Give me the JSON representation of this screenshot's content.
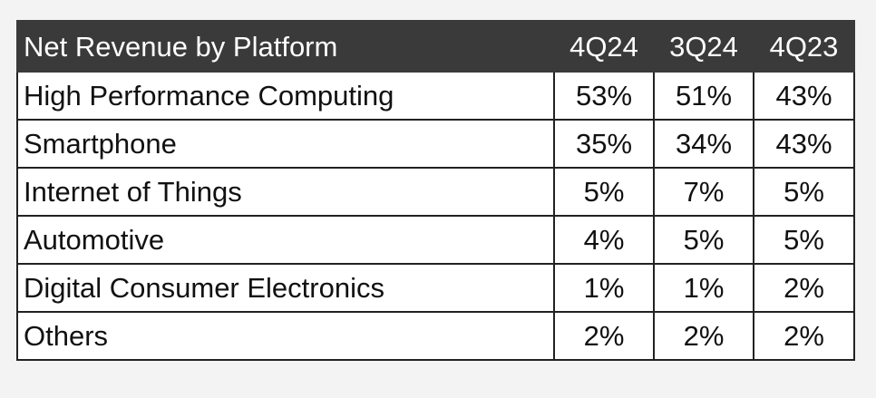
{
  "chart_data": {
    "type": "table",
    "title": "Net Revenue by Platform",
    "columns": [
      "4Q24",
      "3Q24",
      "4Q23"
    ],
    "rows": [
      {
        "label": "High Performance Computing",
        "values": [
          "53%",
          "51%",
          "43%"
        ]
      },
      {
        "label": "Smartphone",
        "values": [
          "35%",
          "34%",
          "43%"
        ]
      },
      {
        "label": "Internet of Things",
        "values": [
          "5%",
          "7%",
          "5%"
        ]
      },
      {
        "label": "Automotive",
        "values": [
          "4%",
          "5%",
          "5%"
        ]
      },
      {
        "label": "Digital Consumer Electronics",
        "values": [
          "1%",
          "1%",
          "2%"
        ]
      },
      {
        "label": "Others",
        "values": [
          "2%",
          "2%",
          "2%"
        ]
      }
    ],
    "header_bg": "#3a3a3a",
    "header_text_color": "#ffffff",
    "border_color": "#222222"
  }
}
